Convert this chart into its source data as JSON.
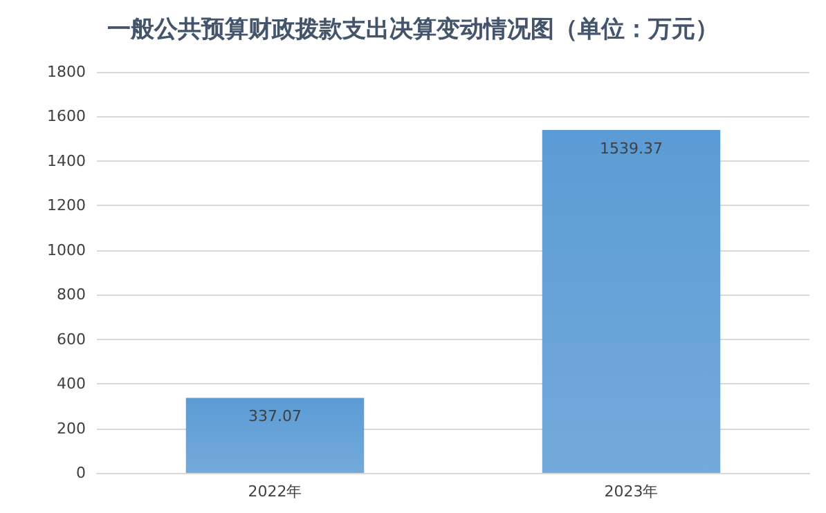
{
  "chart_data": {
    "type": "bar",
    "title": "一般公共预算财政拨款支出决算变动情况图（单位：万元）",
    "categories": [
      "2022年",
      "2023年"
    ],
    "values": [
      337.07,
      1539.37
    ],
    "color": "#5b9bd5",
    "ylim": [
      0,
      1800
    ],
    "yticks": [
      0,
      200,
      400,
      600,
      800,
      1000,
      1200,
      1400,
      1600,
      1800
    ],
    "grid": "y",
    "data_labels": true
  }
}
